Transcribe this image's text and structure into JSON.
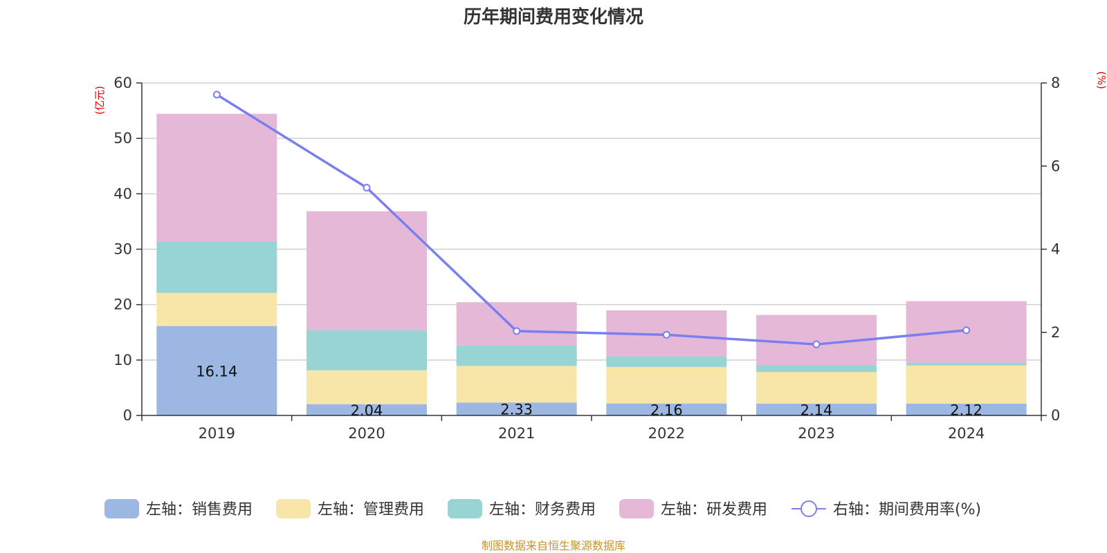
{
  "chart_data": {
    "type": "bar",
    "title": "历年期间费用变化情况",
    "left_axis_unit": "(亿元)",
    "right_axis_unit": "(%)",
    "categories": [
      "2019",
      "2020",
      "2021",
      "2022",
      "2023",
      "2024"
    ],
    "ylim_left": [
      0,
      60
    ],
    "yticks_left": [
      "0",
      "10",
      "20",
      "30",
      "40",
      "50",
      "60"
    ],
    "ylim_right": [
      0,
      8
    ],
    "yticks_right": [
      "0",
      "2",
      "4",
      "6",
      "8"
    ],
    "grid": true,
    "legend_position": "bottom",
    "series": [
      {
        "name": "左轴：销售费用",
        "type": "bar",
        "axis": "left",
        "color": "#9cb7e2",
        "values": [
          16.14,
          2.04,
          2.33,
          2.16,
          2.14,
          2.12
        ],
        "labels": [
          "16.14",
          "2.04",
          "2.33",
          "2.16",
          "2.14",
          "2.12"
        ]
      },
      {
        "name": "左轴：管理费用",
        "type": "bar",
        "axis": "left",
        "color": "#f7e6a7",
        "values": [
          6.0,
          6.1,
          6.6,
          6.6,
          5.7,
          6.9
        ]
      },
      {
        "name": "左轴：财务费用",
        "type": "bar",
        "axis": "left",
        "color": "#98d4d4",
        "values": [
          9.3,
          7.2,
          3.7,
          1.9,
          1.2,
          0.5
        ]
      },
      {
        "name": "左轴：研发费用",
        "type": "bar",
        "axis": "left",
        "color": "#e6b8d8",
        "values": [
          23.0,
          21.5,
          7.8,
          8.3,
          9.1,
          11.1
        ]
      },
      {
        "name": "右轴：期间费用率(%)",
        "type": "line",
        "axis": "right",
        "color": "#7a7ff0",
        "values": [
          7.72,
          5.48,
          2.03,
          1.94,
          1.71,
          2.05
        ]
      }
    ],
    "footer": "制图数据来自恒生聚源数据库"
  }
}
